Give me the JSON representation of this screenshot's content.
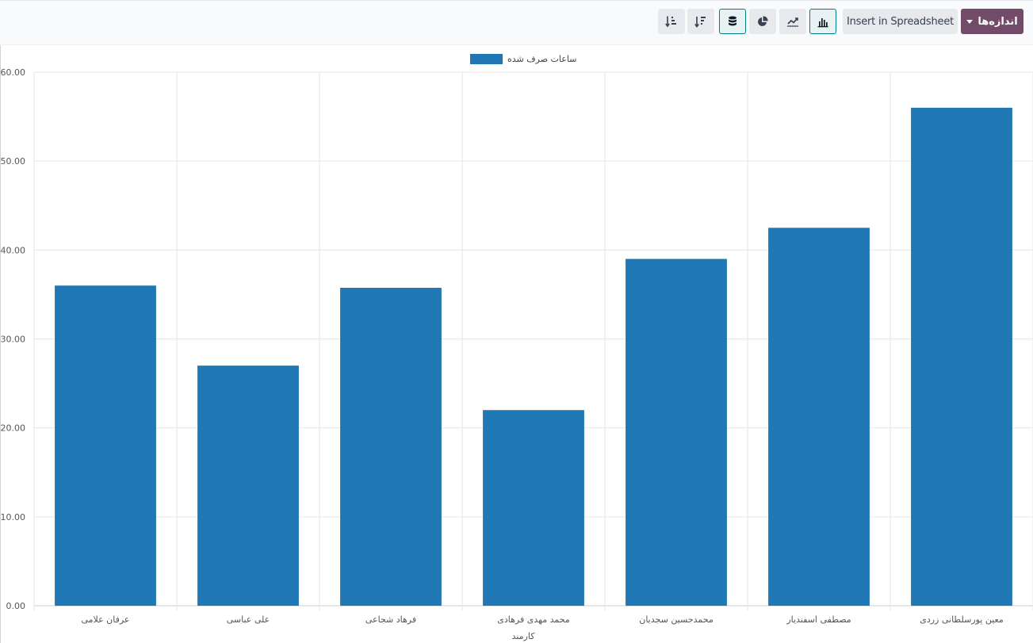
{
  "toolbar": {
    "measures_label": "اندازه‌ها",
    "spreadsheet_label": "Insert in Spreadsheet",
    "icons": [
      "bar-chart-icon",
      "line-chart-icon",
      "pie-chart-icon",
      "stacked-icon",
      "descending-sort-icon",
      "ascending-sort-icon"
    ],
    "accent_color": "#714b67",
    "active_color": "#017e84"
  },
  "chart_data": {
    "type": "bar",
    "title": "",
    "legend": {
      "position": "top-center"
    },
    "xlabel": "کارمند",
    "ylabel": "",
    "ylim": [
      0,
      60
    ],
    "yticks": [
      "0.00",
      "10.00",
      "20.00",
      "30.00",
      "40.00",
      "50.00",
      "60.00"
    ],
    "grid": true,
    "categories": [
      "عرفان علامی",
      "علی عباسی",
      "فرهاد شجاعی",
      "محمد مهدی فرهادی",
      "محمدحسین سجدیان",
      "مصطفی اسفندیار",
      "معین پورسلطانی زردی"
    ],
    "series": [
      {
        "name": "ساعات صرف شده",
        "color": "#1f77b4",
        "values": [
          36,
          27,
          35.75,
          22,
          39,
          42.5,
          56
        ]
      }
    ]
  }
}
